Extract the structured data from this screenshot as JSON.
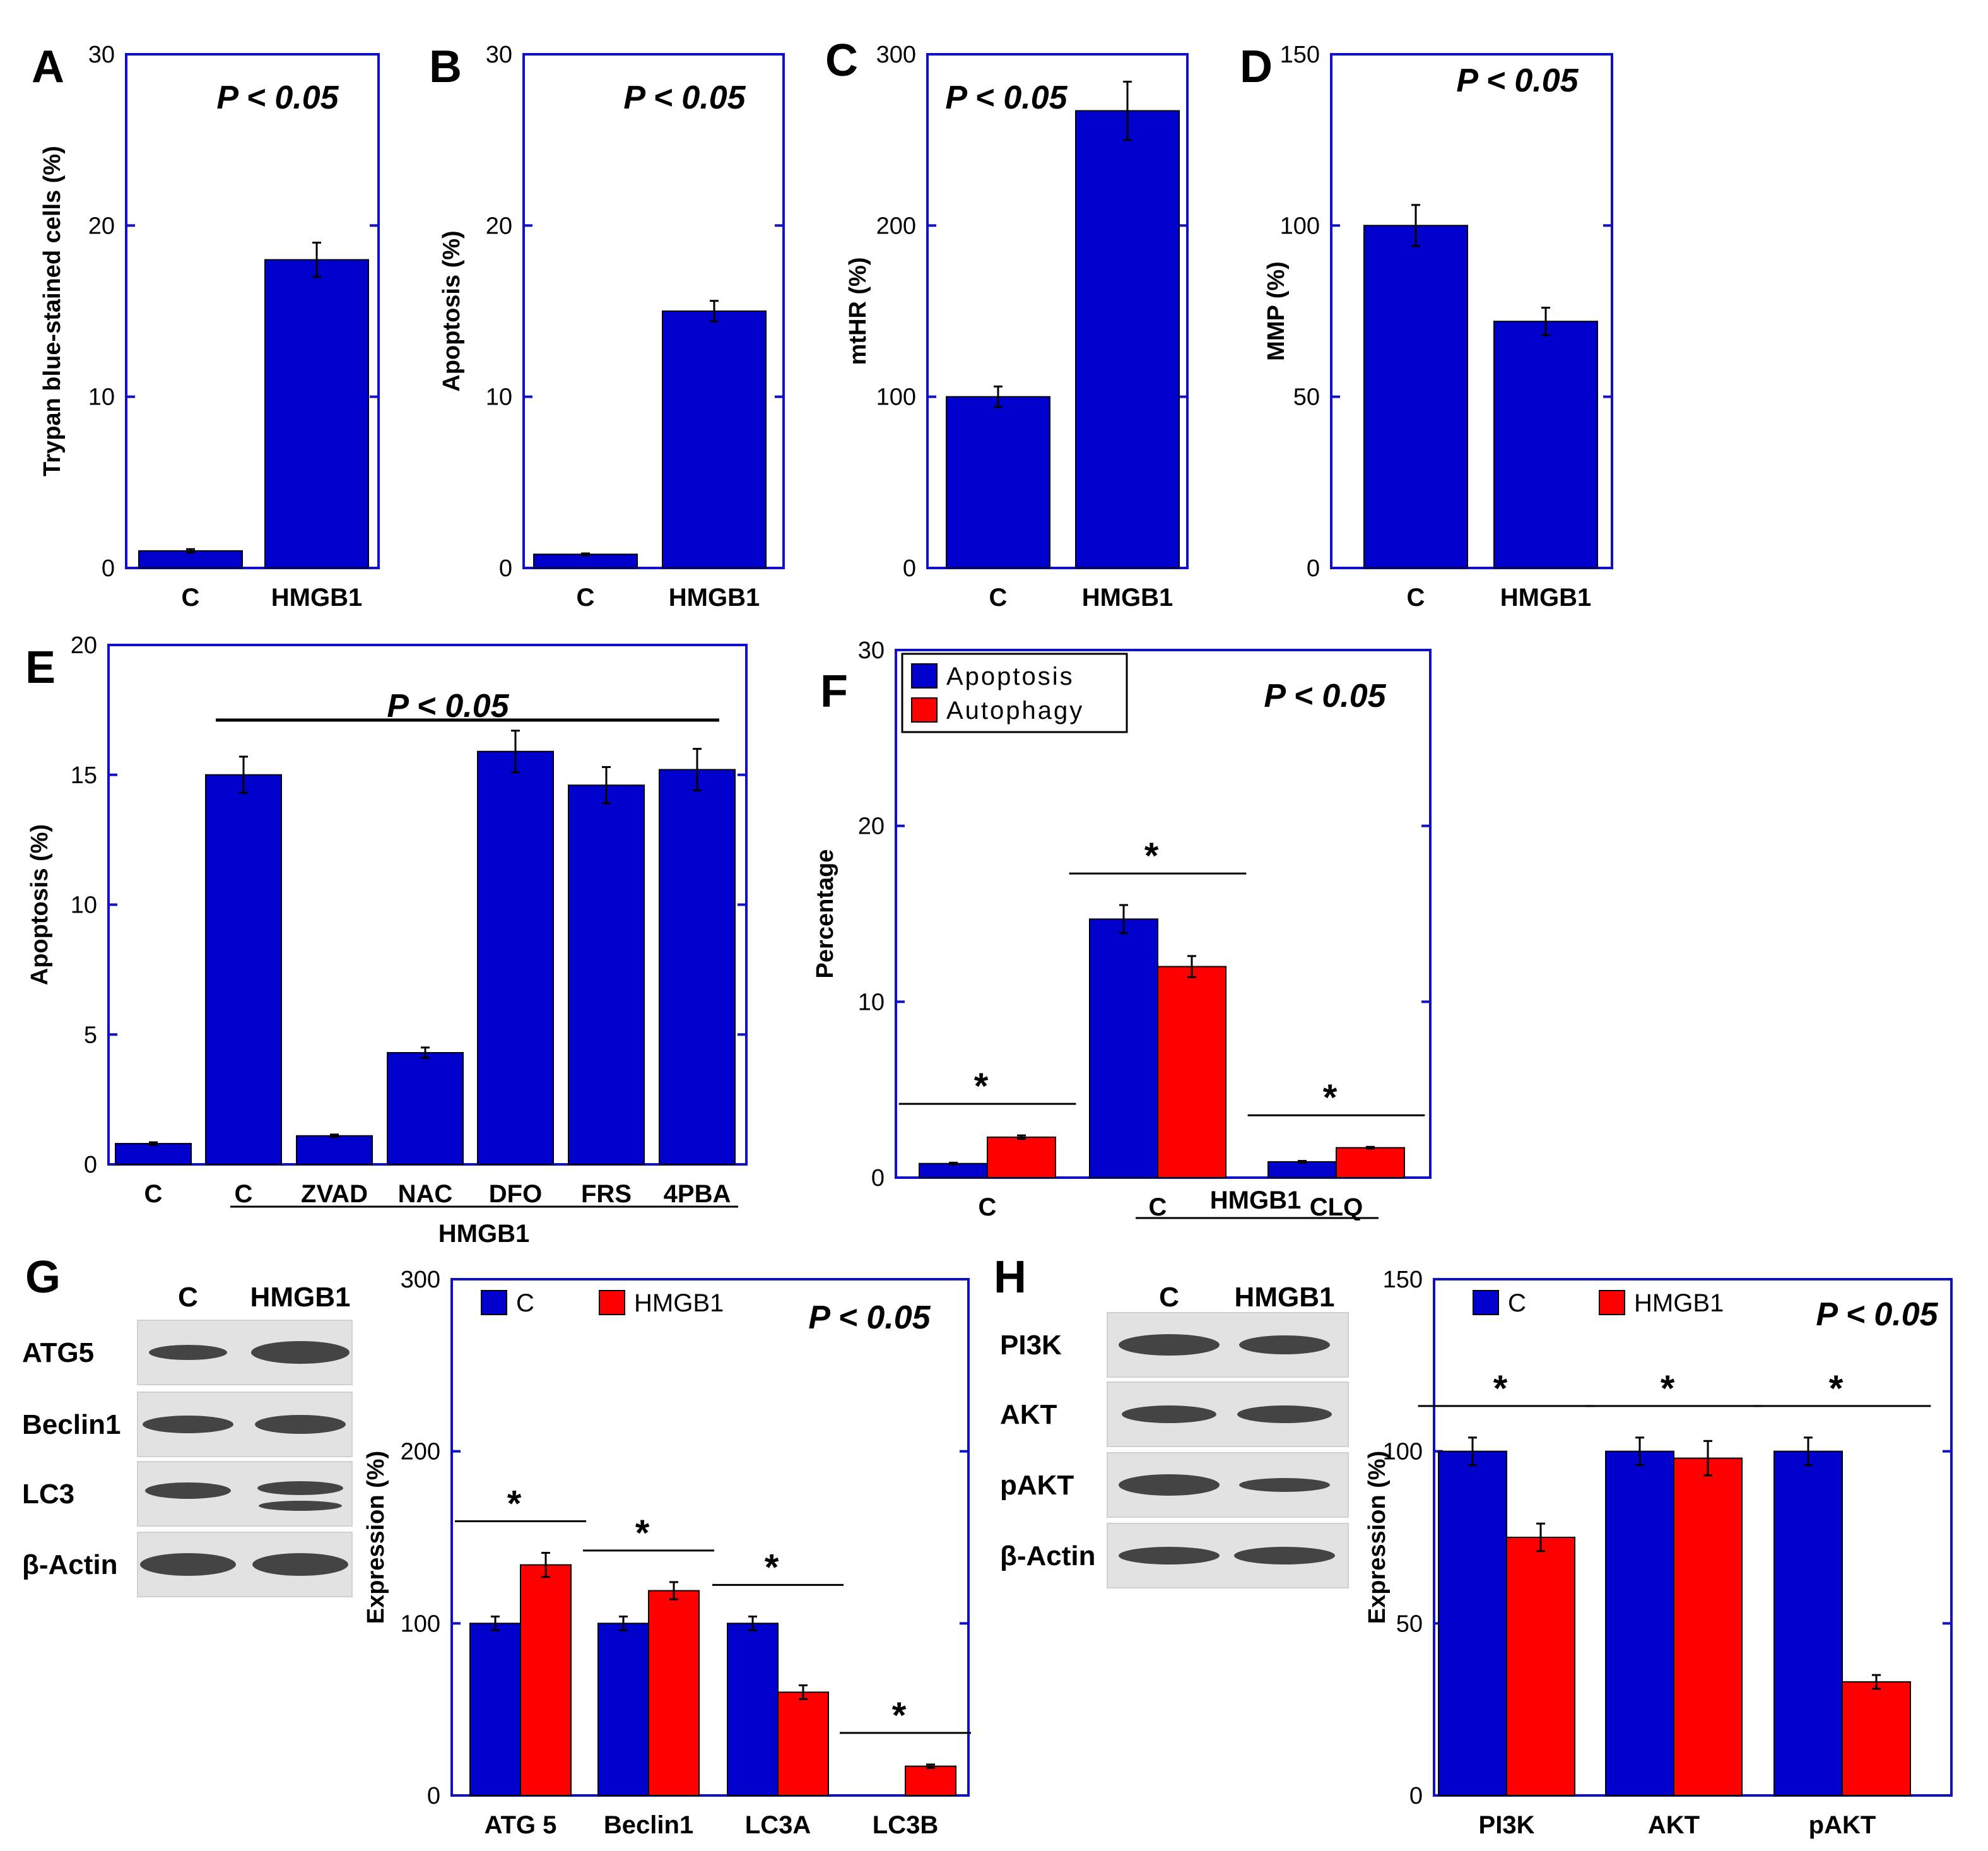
{
  "chart_data": [
    {
      "id": "A",
      "type": "bar",
      "label": "A",
      "categories": [
        "C",
        "HMGB1"
      ],
      "values": [
        1.0,
        18.0
      ],
      "errors": [
        0.1,
        1.0
      ],
      "ylabel": "Trypan blue-stained cells (%)",
      "ylim": [
        0,
        30
      ],
      "yticks": [
        0,
        10,
        20,
        30
      ],
      "annotation": "P < 0.05"
    },
    {
      "id": "B",
      "type": "bar",
      "label": "B",
      "categories": [
        "C",
        "HMGB1"
      ],
      "values": [
        0.8,
        15.0
      ],
      "errors": [
        0.05,
        0.6
      ],
      "ylabel": "Apoptosis (%)",
      "ylim": [
        0,
        30
      ],
      "yticks": [
        0,
        10,
        20,
        30
      ],
      "annotation": "P < 0.05"
    },
    {
      "id": "C",
      "type": "bar",
      "label": "C",
      "categories": [
        "C",
        "HMGB1"
      ],
      "values": [
        100,
        267
      ],
      "errors": [
        6,
        17
      ],
      "ylabel": "mtHR (%)",
      "ylim": [
        0,
        300
      ],
      "yticks": [
        0,
        100,
        200,
        300
      ],
      "annotation": "P < 0.05"
    },
    {
      "id": "D",
      "type": "bar",
      "label": "D",
      "categories": [
        "C",
        "HMGB1"
      ],
      "values": [
        100,
        72
      ],
      "errors": [
        6,
        4
      ],
      "ylabel": "MMP (%)",
      "ylim": [
        0,
        150
      ],
      "yticks": [
        0,
        50,
        100,
        150
      ],
      "annotation": "P < 0.05"
    },
    {
      "id": "E",
      "type": "bar",
      "label": "E",
      "categories": [
        "C",
        "C",
        "ZVAD",
        "NAC",
        "DFO",
        "FRS",
        "4PBA"
      ],
      "values": [
        0.8,
        15.0,
        1.1,
        4.3,
        15.9,
        14.6,
        15.2
      ],
      "errors": [
        0.05,
        0.7,
        0.05,
        0.2,
        0.8,
        0.7,
        0.8
      ],
      "ylabel": "Apoptosis (%)",
      "ylim": [
        0,
        20
      ],
      "yticks": [
        0,
        5,
        10,
        15,
        20
      ],
      "annotation": "P < 0.05",
      "group_label": "HMGB1"
    },
    {
      "id": "F",
      "type": "bar",
      "label": "F",
      "categories": [
        "C",
        "C",
        "CLQ"
      ],
      "series": [
        {
          "name": "Apoptosis",
          "color": "#0000cc",
          "values": [
            0.8,
            14.7,
            0.9
          ],
          "errors": [
            0.05,
            0.8,
            0.05
          ]
        },
        {
          "name": "Autophagy",
          "color": "#ff0000",
          "values": [
            2.3,
            12.0,
            1.7
          ],
          "errors": [
            0.1,
            0.6,
            0.05
          ]
        }
      ],
      "ylabel": "Percentage",
      "ylim": [
        0,
        30
      ],
      "yticks": [
        0,
        10,
        20,
        30
      ],
      "annotation": "P < 0.05",
      "group_label": "HMGB1",
      "star": "*",
      "legend": "top-left"
    },
    {
      "id": "G",
      "type": "bar",
      "label": "G",
      "categories": [
        "ATG 5",
        "Beclin1",
        "LC3A",
        "LC3B"
      ],
      "series": [
        {
          "name": "C",
          "color": "#0000cc",
          "values": [
            100,
            100,
            100,
            0
          ],
          "errors": [
            4,
            4,
            4,
            0
          ]
        },
        {
          "name": "HMGB1",
          "color": "#ff0000",
          "values": [
            134,
            119,
            60,
            17
          ],
          "errors": [
            7,
            5,
            4,
            1
          ]
        }
      ],
      "ylabel": "Expression (%)",
      "ylim": [
        0,
        300
      ],
      "yticks": [
        0,
        100,
        200,
        300
      ],
      "annotation": "P < 0.05",
      "star": "*",
      "legend": "top"
    },
    {
      "id": "H",
      "type": "bar",
      "label": "H",
      "categories": [
        "PI3K",
        "AKT",
        "pAKT"
      ],
      "series": [
        {
          "name": "C",
          "color": "#0000cc",
          "values": [
            100,
            100,
            100
          ],
          "errors": [
            4,
            4,
            4
          ]
        },
        {
          "name": "HMGB1",
          "color": "#ff0000",
          "values": [
            75,
            98,
            33
          ],
          "errors": [
            4,
            5,
            2
          ]
        }
      ],
      "ylabel": "Expression (%)",
      "ylim": [
        0,
        150
      ],
      "yticks": [
        0,
        50,
        100,
        150
      ],
      "annotation": "P < 0.05",
      "star": "*",
      "legend": "top"
    }
  ],
  "blots": {
    "G": {
      "columns": [
        "C",
        "HMGB1"
      ],
      "rows": [
        "ATG5",
        "Beclin1",
        "LC3",
        "β-Actin"
      ]
    },
    "H": {
      "columns": [
        "C",
        "HMGB1"
      ],
      "rows": [
        "PI3K",
        "AKT",
        "pAKT",
        "β-Actin"
      ]
    }
  }
}
